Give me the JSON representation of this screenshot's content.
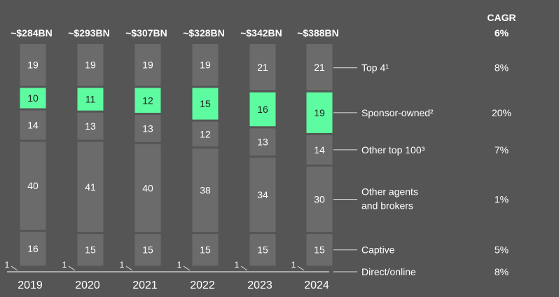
{
  "chart_data": {
    "type": "bar",
    "stacked": true,
    "percent": true,
    "categories": [
      "2019",
      "2020",
      "2021",
      "2022",
      "2023",
      "2024"
    ],
    "totals": [
      "~$284BN",
      "~$293BN",
      "~$307BN",
      "~$328BN",
      "~$342BN",
      "~$388BN"
    ],
    "cagr_header": "CAGR",
    "total_cagr": "6%",
    "series": [
      {
        "name": "Direct/online",
        "values": [
          1,
          1,
          1,
          1,
          1,
          1
        ],
        "cagr": "8%",
        "color": "#777777",
        "highlight": false
      },
      {
        "name": "Captive",
        "values": [
          16,
          15,
          15,
          15,
          15,
          15
        ],
        "cagr": "5%",
        "color": "#6b6b6b",
        "highlight": false
      },
      {
        "name": "Other agents and brokers",
        "label_lines": [
          "Other agents",
          "and brokers"
        ],
        "values": [
          40,
          41,
          40,
          38,
          34,
          30
        ],
        "cagr": "1%",
        "color": "#6b6b6b",
        "highlight": false
      },
      {
        "name": "Other top 100³",
        "values": [
          14,
          13,
          13,
          12,
          13,
          14
        ],
        "cagr": "7%",
        "color": "#6b6b6b",
        "highlight": false
      },
      {
        "name": "Sponsor-owned²",
        "values": [
          10,
          11,
          12,
          15,
          16,
          19
        ],
        "cagr": "20%",
        "color": "#5dfca0",
        "highlight": true
      },
      {
        "name": "Top 4¹",
        "values": [
          19,
          19,
          19,
          19,
          21,
          21
        ],
        "cagr": "8%",
        "color": "#6b6b6b",
        "highlight": false
      }
    ]
  }
}
